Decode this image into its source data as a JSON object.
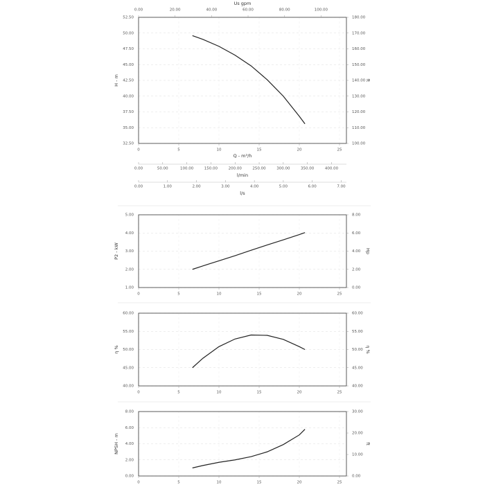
{
  "chart_data": [
    {
      "type": "line",
      "x_label": "Q - m³/h",
      "y_label": "H - m",
      "y2_label": "ft",
      "x2_label": "Us gpm",
      "xlim": [
        0,
        25.86
      ],
      "xticks": [
        0,
        5,
        10,
        15,
        20,
        25
      ],
      "x2lim": [
        0,
        113.9
      ],
      "x2ticks": [
        {
          "value": 0,
          "label": "0.00"
        },
        {
          "value": 20,
          "label": "20.00"
        },
        {
          "value": 40,
          "label": "40.00"
        },
        {
          "value": 60,
          "label": "60.00"
        },
        {
          "value": 80,
          "label": "80.00"
        },
        {
          "value": 100,
          "label": "100.00"
        }
      ],
      "ylim": [
        32.5,
        52.5
      ],
      "yticks": [
        {
          "value": 32.5,
          "label": "32.50"
        },
        {
          "value": 35,
          "label": "35.00"
        },
        {
          "value": 37.5,
          "label": "37.50"
        },
        {
          "value": 40,
          "label": "40.00"
        },
        {
          "value": 42.5,
          "label": "42.50"
        },
        {
          "value": 45,
          "label": "45.00"
        },
        {
          "value": 47.5,
          "label": "47.50"
        },
        {
          "value": 50,
          "label": "50.00"
        },
        {
          "value": 52.5,
          "label": "52.50"
        }
      ],
      "y2lim": [
        100,
        180
      ],
      "y2ticks": [
        {
          "value": 100,
          "label": "100.00"
        },
        {
          "value": 110,
          "label": "110.00"
        },
        {
          "value": 120,
          "label": "120.00"
        },
        {
          "value": 130,
          "label": "130.00"
        },
        {
          "value": 140,
          "label": "140.00"
        },
        {
          "value": 150,
          "label": "150.00"
        },
        {
          "value": 160,
          "label": "160.00"
        },
        {
          "value": 170,
          "label": "170.00"
        },
        {
          "value": 180,
          "label": "180.00"
        }
      ],
      "extra_axes": [
        {
          "label": "l/min",
          "lim": [
            0,
            430.9
          ],
          "ticks": [
            {
              "value": 0,
              "label": "0.00"
            },
            {
              "value": 50,
              "label": "50.00"
            },
            {
              "value": 100,
              "label": "100.00"
            },
            {
              "value": 150,
              "label": "150.00"
            },
            {
              "value": 200,
              "label": "200.00"
            },
            {
              "value": 250,
              "label": "250.00"
            },
            {
              "value": 300,
              "label": "300.00"
            },
            {
              "value": 350,
              "label": "350.00"
            },
            {
              "value": 400,
              "label": "400.00"
            }
          ]
        },
        {
          "label": "l/s",
          "lim": [
            0,
            7.18
          ],
          "ticks": [
            {
              "value": 0,
              "label": "0.00"
            },
            {
              "value": 1,
              "label": "1.00"
            },
            {
              "value": 2,
              "label": "2.00"
            },
            {
              "value": 3,
              "label": "3.00"
            },
            {
              "value": 4,
              "label": "4.00"
            },
            {
              "value": 5,
              "label": "5.00"
            },
            {
              "value": 6,
              "label": "6.00"
            },
            {
              "value": 7,
              "label": "7.00"
            }
          ]
        }
      ],
      "grid": true,
      "x": [
        6.7,
        8,
        10,
        12,
        14,
        16,
        18,
        20,
        20.7
      ],
      "series": [
        {
          "color": "#222222",
          "values": [
            49.6,
            49.0,
            47.9,
            46.5,
            44.8,
            42.6,
            40.0,
            36.8,
            35.6
          ]
        }
      ]
    },
    {
      "type": "line",
      "y_label": "P2 - kW",
      "y2_label": "Hp",
      "xlim": [
        0,
        25.86
      ],
      "xticks": [
        0,
        5,
        10,
        15,
        20,
        25
      ],
      "ylim": [
        1,
        5
      ],
      "yticks": [
        {
          "value": 1,
          "label": "1.00"
        },
        {
          "value": 2,
          "label": "2.00"
        },
        {
          "value": 3,
          "label": "3.00"
        },
        {
          "value": 4,
          "label": "4.00"
        },
        {
          "value": 5,
          "label": "5.00"
        }
      ],
      "y2lim": [
        0,
        8
      ],
      "y2ticks": [
        {
          "value": 0,
          "label": "0.00"
        },
        {
          "value": 2,
          "label": "2.00"
        },
        {
          "value": 4,
          "label": "4.00"
        },
        {
          "value": 6,
          "label": "6.00"
        },
        {
          "value": 8,
          "label": "8.00"
        }
      ],
      "grid": true,
      "x": [
        6.7,
        8,
        10,
        12,
        14,
        16,
        18,
        20,
        20.7
      ],
      "series": [
        {
          "color": "#222222",
          "values": [
            2.0,
            2.19,
            2.47,
            2.75,
            3.05,
            3.34,
            3.62,
            3.91,
            4.02
          ]
        }
      ]
    },
    {
      "type": "line",
      "y_label": "η %",
      "y2_label": "η %",
      "xlim": [
        0,
        25.86
      ],
      "xticks": [
        0,
        5,
        10,
        15,
        20,
        25
      ],
      "ylim": [
        40,
        60
      ],
      "yticks": [
        {
          "value": 40,
          "label": "40.00"
        },
        {
          "value": 45,
          "label": "45.00"
        },
        {
          "value": 50,
          "label": "50.00"
        },
        {
          "value": 55,
          "label": "55.00"
        },
        {
          "value": 60,
          "label": "60.00"
        }
      ],
      "y2lim": [
        40,
        60
      ],
      "y2ticks": [
        {
          "value": 40,
          "label": "40.00"
        },
        {
          "value": 45,
          "label": "45.00"
        },
        {
          "value": 50,
          "label": "50.00"
        },
        {
          "value": 55,
          "label": "55.00"
        },
        {
          "value": 60,
          "label": "60.00"
        }
      ],
      "grid": true,
      "x": [
        6.7,
        8,
        10,
        12,
        14,
        16,
        18,
        20,
        20.7
      ],
      "series": [
        {
          "color": "#222222",
          "values": [
            45.0,
            47.6,
            50.8,
            52.9,
            54.0,
            53.9,
            52.8,
            50.8,
            50.0
          ]
        }
      ]
    },
    {
      "type": "line",
      "y_label": "NPSH - m",
      "y2_label": "ft",
      "xlim": [
        0,
        25.86
      ],
      "xticks": [
        0,
        5,
        10,
        15,
        20,
        25
      ],
      "ylim": [
        0,
        8
      ],
      "yticks": [
        {
          "value": 0,
          "label": "0.00"
        },
        {
          "value": 2,
          "label": "2.00"
        },
        {
          "value": 4,
          "label": "4.00"
        },
        {
          "value": 6,
          "label": "6.00"
        },
        {
          "value": 8,
          "label": "8.00"
        }
      ],
      "y2lim": [
        0,
        30
      ],
      "y2ticks": [
        {
          "value": 0,
          "label": "0.00"
        },
        {
          "value": 10,
          "label": "10.00"
        },
        {
          "value": 20,
          "label": "20.00"
        },
        {
          "value": 30,
          "label": "30.00"
        }
      ],
      "grid": true,
      "x": [
        6.7,
        8,
        10,
        12,
        14,
        16,
        18,
        20,
        20.7
      ],
      "series": [
        {
          "color": "#222222",
          "values": [
            1.0,
            1.3,
            1.7,
            2.0,
            2.4,
            3.0,
            3.9,
            5.1,
            5.8
          ]
        }
      ]
    }
  ]
}
